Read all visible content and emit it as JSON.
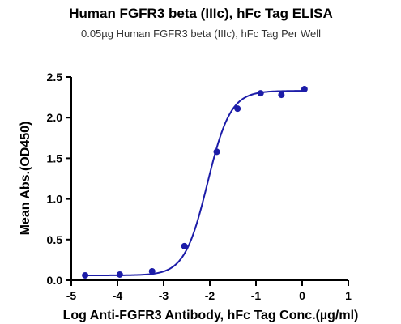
{
  "chart_data": {
    "type": "scatter",
    "title": "Human FGFR3 beta (IIIc), hFc Tag ELISA",
    "subtitle": "0.05µg Human FGFR3 beta (IIIc), hFc Tag Per Well",
    "xlabel": "Log  Anti-FGFR3 Antibody, hFc Tag Conc.(µg/ml)",
    "ylabel": "Mean Abs.(OD450)",
    "xlim": [
      -5,
      1
    ],
    "ylim": [
      0,
      2.5
    ],
    "xticks": [
      "-5",
      "-4",
      "-3",
      "-2",
      "-1",
      "0",
      "1"
    ],
    "yticks": [
      "0.0",
      "0.5",
      "1.0",
      "1.5",
      "2.0",
      "2.5"
    ],
    "grid": false,
    "colors": {
      "series": "#1c1ca8",
      "axis": "#000000"
    },
    "series": [
      {
        "points": [
          {
            "x": -4.7,
            "y": 0.06
          },
          {
            "x": -3.95,
            "y": 0.07
          },
          {
            "x": -3.25,
            "y": 0.11
          },
          {
            "x": -2.55,
            "y": 0.42
          },
          {
            "x": -1.85,
            "y": 1.58
          },
          {
            "x": -1.4,
            "y": 2.11
          },
          {
            "x": -0.9,
            "y": 2.3
          },
          {
            "x": -0.45,
            "y": 2.28
          },
          {
            "x": 0.05,
            "y": 2.35
          }
        ],
        "fit": {
          "model": "4PL",
          "bottom": 0.06,
          "top": 2.33,
          "logEC50": -2.05,
          "hill": 1.75
        }
      }
    ]
  }
}
